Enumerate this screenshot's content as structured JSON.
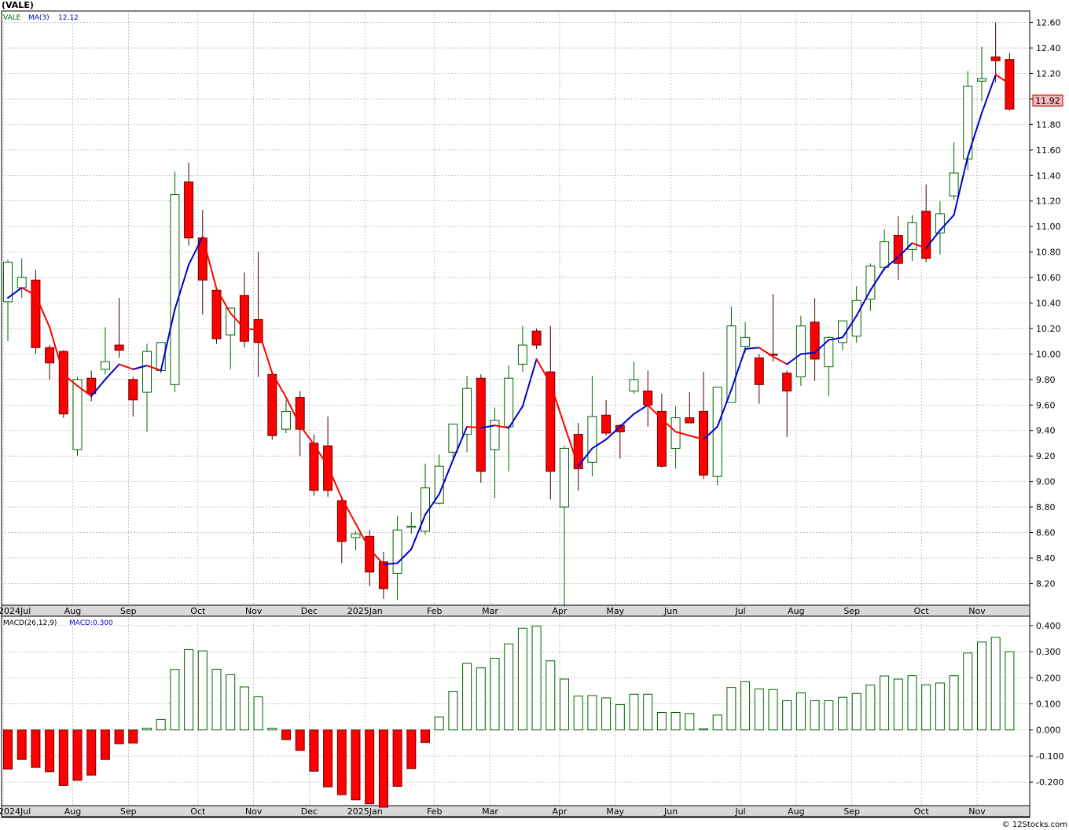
{
  "title": "(VALE)",
  "credit": "© 12Stocks.com",
  "colors": {
    "up": "#006400",
    "down": "#ff0000",
    "ma_up": "#0000cc",
    "ma_down": "#ff0000",
    "grid": "#a0a0a0",
    "last_price_bg": "#f4b8b8"
  },
  "chart_data": [
    {
      "type": "candlestick",
      "name": "price",
      "legend": {
        "symbol": "VALE",
        "ma_label": "MA(3)",
        "ma_value": "12.12"
      },
      "last_price_label": "11.92",
      "y_ticks": [
        "8.20",
        "8.40",
        "8.60",
        "8.80",
        "9.00",
        "9.20",
        "9.40",
        "9.60",
        "9.80",
        "10.00",
        "10.20",
        "10.40",
        "10.60",
        "10.80",
        "11.00",
        "11.20",
        "11.40",
        "11.60",
        "11.80",
        "12.00",
        "12.20",
        "12.40",
        "12.60"
      ],
      "ylim": [
        8.03,
        12.69
      ],
      "x_labels": [
        {
          "label": "2024Jul",
          "at": 0
        },
        {
          "label": "Aug",
          "at": 5
        },
        {
          "label": "Sep",
          "at": 9
        },
        {
          "label": "Oct",
          "at": 14
        },
        {
          "label": "Nov",
          "at": 18
        },
        {
          "label": "Dec",
          "at": 22
        },
        {
          "label": "2025Jan",
          "at": 26
        },
        {
          "label": "Feb",
          "at": 31
        },
        {
          "label": "Mar",
          "at": 35
        },
        {
          "label": "Apr",
          "at": 40
        },
        {
          "label": "May",
          "at": 44
        },
        {
          "label": "Jun",
          "at": 48
        },
        {
          "label": "Jul",
          "at": 53
        },
        {
          "label": "Aug",
          "at": 57
        },
        {
          "label": "Sep",
          "at": 61
        },
        {
          "label": "Oct",
          "at": 66
        },
        {
          "label": "Nov",
          "at": 70
        }
      ],
      "candles": [
        [
          10.41,
          10.74,
          10.1,
          10.72
        ],
        [
          10.52,
          10.75,
          10.44,
          10.6
        ],
        [
          10.58,
          10.66,
          10.0,
          10.05
        ],
        [
          10.05,
          10.07,
          9.8,
          9.93
        ],
        [
          10.02,
          10.03,
          9.5,
          9.53
        ],
        [
          9.25,
          9.82,
          9.2,
          9.8
        ],
        [
          9.81,
          9.87,
          9.63,
          9.69
        ],
        [
          9.88,
          10.21,
          9.84,
          9.94
        ],
        [
          10.07,
          10.44,
          9.97,
          10.03
        ],
        [
          9.8,
          9.82,
          9.51,
          9.64
        ],
        [
          9.7,
          10.08,
          9.39,
          10.02
        ],
        [
          9.87,
          10.05,
          9.85,
          10.09
        ],
        [
          9.76,
          11.43,
          9.7,
          11.25
        ],
        [
          11.35,
          11.5,
          10.85,
          10.91
        ],
        [
          10.91,
          11.13,
          10.31,
          10.58
        ],
        [
          10.5,
          10.5,
          10.08,
          10.12
        ],
        [
          10.15,
          10.33,
          9.88,
          10.36
        ],
        [
          10.46,
          10.64,
          10.05,
          10.1
        ],
        [
          10.27,
          10.8,
          9.82,
          10.09
        ],
        [
          9.84,
          9.84,
          9.33,
          9.36
        ],
        [
          9.41,
          9.64,
          9.38,
          9.55
        ],
        [
          9.66,
          9.71,
          9.2,
          9.41
        ],
        [
          9.3,
          9.37,
          8.89,
          8.93
        ],
        [
          9.28,
          9.51,
          8.88,
          8.93
        ],
        [
          8.85,
          8.86,
          8.36,
          8.53
        ],
        [
          8.56,
          8.61,
          8.46,
          8.59
        ],
        [
          8.57,
          8.62,
          8.18,
          8.29
        ],
        [
          8.37,
          8.45,
          8.08,
          8.16
        ],
        [
          8.28,
          8.73,
          8.07,
          8.62
        ],
        [
          8.65,
          8.76,
          8.59,
          8.65
        ],
        [
          8.61,
          9.14,
          8.58,
          8.95
        ],
        [
          8.83,
          9.21,
          8.82,
          9.12
        ],
        [
          9.23,
          9.45,
          9.16,
          9.45
        ],
        [
          9.37,
          9.83,
          9.23,
          9.73
        ],
        [
          9.81,
          9.84,
          8.99,
          9.08
        ],
        [
          9.25,
          9.58,
          8.87,
          9.48
        ],
        [
          9.43,
          9.91,
          9.08,
          9.81
        ],
        [
          9.92,
          10.22,
          9.86,
          10.07
        ],
        [
          10.18,
          10.2,
          10.04,
          10.07
        ],
        [
          9.86,
          10.22,
          8.86,
          9.08
        ],
        [
          8.8,
          9.28,
          8.02,
          9.26
        ],
        [
          9.37,
          9.46,
          8.93,
          9.1
        ],
        [
          9.15,
          9.83,
          9.04,
          9.51
        ],
        [
          9.52,
          9.64,
          9.36,
          9.38
        ],
        [
          9.44,
          9.45,
          9.18,
          9.39
        ],
        [
          9.71,
          9.94,
          9.69,
          9.8
        ],
        [
          9.71,
          9.87,
          9.43,
          9.6
        ],
        [
          9.55,
          9.69,
          9.11,
          9.12
        ],
        [
          9.26,
          9.59,
          9.1,
          9.5
        ],
        [
          9.5,
          9.7,
          9.48,
          9.46
        ],
        [
          9.55,
          9.86,
          9.02,
          9.05
        ],
        [
          9.04,
          9.74,
          8.97,
          9.74
        ],
        [
          9.62,
          10.37,
          9.62,
          10.22
        ],
        [
          10.06,
          10.25,
          10.01,
          10.13
        ],
        [
          9.97,
          10.0,
          9.61,
          9.76
        ],
        [
          10.0,
          10.47,
          9.94,
          9.99
        ],
        [
          9.85,
          9.87,
          9.35,
          9.71
        ],
        [
          9.82,
          10.3,
          9.75,
          10.22
        ],
        [
          10.25,
          10.44,
          9.79,
          9.96
        ],
        [
          9.9,
          10.14,
          9.67,
          10.13
        ],
        [
          10.09,
          10.26,
          10.03,
          10.26
        ],
        [
          10.14,
          10.53,
          10.09,
          10.42
        ],
        [
          10.43,
          10.71,
          10.34,
          10.69
        ],
        [
          10.68,
          10.98,
          10.65,
          10.88
        ],
        [
          10.93,
          11.08,
          10.58,
          10.71
        ],
        [
          10.82,
          11.09,
          10.73,
          11.03
        ],
        [
          11.12,
          11.33,
          10.72,
          10.75
        ],
        [
          10.95,
          11.2,
          10.78,
          11.1
        ],
        [
          11.24,
          11.66,
          11.21,
          11.42
        ],
        [
          11.53,
          12.22,
          11.44,
          12.1
        ],
        [
          12.14,
          12.41,
          11.98,
          12.16
        ],
        [
          12.33,
          12.6,
          12.13,
          12.3
        ],
        [
          12.31,
          12.36,
          11.91,
          11.92
        ]
      ],
      "ma3": [
        10.44,
        10.52,
        10.46,
        10.21,
        9.84,
        9.75,
        9.67,
        9.8,
        9.92,
        9.88,
        9.91,
        9.87,
        10.35,
        10.7,
        10.92,
        10.51,
        10.32,
        10.2,
        10.19,
        9.85,
        9.66,
        9.44,
        9.29,
        9.12,
        8.87,
        8.67,
        8.47,
        8.35,
        8.36,
        8.47,
        8.74,
        8.9,
        9.17,
        9.43,
        9.42,
        9.44,
        9.42,
        9.59,
        9.96,
        9.77,
        9.44,
        9.12,
        9.26,
        9.33,
        9.43,
        9.53,
        9.6,
        9.49,
        9.39,
        9.36,
        9.33,
        9.43,
        9.72,
        10.04,
        10.05,
        9.98,
        9.92,
        10.0,
        10.01,
        10.11,
        10.13,
        10.3,
        10.5,
        10.67,
        10.76,
        10.87,
        10.83,
        10.97,
        11.09,
        11.55,
        11.89,
        12.19,
        12.12
      ]
    },
    {
      "type": "bar",
      "name": "macd",
      "legend": {
        "label": "MACD(26,12,9)",
        "value_label": "MACD:0.300"
      },
      "y_ticks": [
        "-0.200",
        "-0.100",
        "0.000",
        "0.100",
        "0.200",
        "0.300",
        "0.400"
      ],
      "ylim": [
        -0.29,
        0.43
      ],
      "x_labels": [
        {
          "label": "2024Jul",
          "at": 0
        },
        {
          "label": "Aug",
          "at": 5
        },
        {
          "label": "Sep",
          "at": 9
        },
        {
          "label": "Oct",
          "at": 14
        },
        {
          "label": "Nov",
          "at": 18
        },
        {
          "label": "Dec",
          "at": 22
        },
        {
          "label": "2025Jan",
          "at": 26
        },
        {
          "label": "Feb",
          "at": 31
        },
        {
          "label": "Mar",
          "at": 35
        },
        {
          "label": "Apr",
          "at": 40
        },
        {
          "label": "May",
          "at": 44
        },
        {
          "label": "Jun",
          "at": 48
        },
        {
          "label": "Jul",
          "at": 53
        },
        {
          "label": "Aug",
          "at": 57
        },
        {
          "label": "Sep",
          "at": 61
        },
        {
          "label": "Oct",
          "at": 66
        },
        {
          "label": "Nov",
          "at": 70
        }
      ],
      "values": [
        -0.15,
        -0.113,
        -0.143,
        -0.16,
        -0.213,
        -0.193,
        -0.173,
        -0.113,
        -0.053,
        -0.05,
        0.007,
        0.04,
        0.232,
        0.308,
        0.303,
        0.233,
        0.212,
        0.165,
        0.127,
        0.007,
        -0.037,
        -0.078,
        -0.158,
        -0.218,
        -0.248,
        -0.268,
        -0.283,
        -0.296,
        -0.216,
        -0.148,
        -0.048,
        0.05,
        0.148,
        0.255,
        0.238,
        0.275,
        0.33,
        0.39,
        0.398,
        0.265,
        0.195,
        0.13,
        0.132,
        0.123,
        0.097,
        0.137,
        0.137,
        0.067,
        0.067,
        0.063,
        0.005,
        0.057,
        0.163,
        0.185,
        0.157,
        0.155,
        0.112,
        0.142,
        0.112,
        0.112,
        0.125,
        0.14,
        0.172,
        0.207,
        0.195,
        0.208,
        0.173,
        0.18,
        0.208,
        0.295,
        0.337,
        0.355,
        0.3
      ]
    }
  ]
}
